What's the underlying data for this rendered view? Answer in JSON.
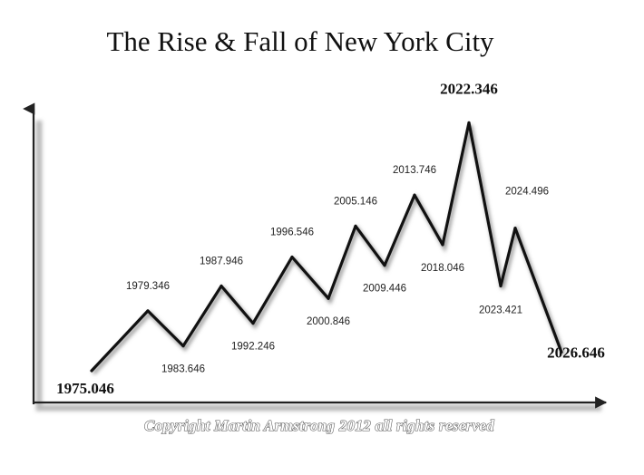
{
  "chart_data": {
    "type": "line",
    "title": "The Rise & Fall of New York City",
    "xlabel": "",
    "ylabel": "",
    "grid": false,
    "legend": "none",
    "line_color": "#111111",
    "points": [
      {
        "label": "1975.046",
        "level": 0.0,
        "emphasis": true,
        "side": "below"
      },
      {
        "label": "1979.346",
        "level": 2.9,
        "emphasis": false,
        "side": "above"
      },
      {
        "label": "1983.646",
        "level": 1.2,
        "emphasis": false,
        "side": "below"
      },
      {
        "label": "1987.946",
        "level": 4.1,
        "emphasis": false,
        "side": "above"
      },
      {
        "label": "1992.246",
        "level": 2.3,
        "emphasis": false,
        "side": "below"
      },
      {
        "label": "1996.546",
        "level": 5.5,
        "emphasis": false,
        "side": "above"
      },
      {
        "label": "2000.846",
        "level": 3.5,
        "emphasis": false,
        "side": "below"
      },
      {
        "label": "2005.146",
        "level": 7.0,
        "emphasis": false,
        "side": "above"
      },
      {
        "label": "2009.446",
        "level": 5.1,
        "emphasis": false,
        "side": "below"
      },
      {
        "label": "2013.746",
        "level": 8.5,
        "emphasis": false,
        "side": "above"
      },
      {
        "label": "2018.046",
        "level": 6.1,
        "emphasis": false,
        "side": "below"
      },
      {
        "label": "2022.346",
        "level": 12.0,
        "emphasis": true,
        "side": "above"
      },
      {
        "label": "2023.421",
        "level": 4.1,
        "emphasis": false,
        "side": "below"
      },
      {
        "label": "2024.496",
        "level": 6.9,
        "emphasis": false,
        "side": "above"
      },
      {
        "label": "2026.646",
        "level": 0.9,
        "emphasis": true,
        "side": "below"
      }
    ]
  },
  "copyright": "Copyright Martin Armstrong 2012 all rights reserved"
}
